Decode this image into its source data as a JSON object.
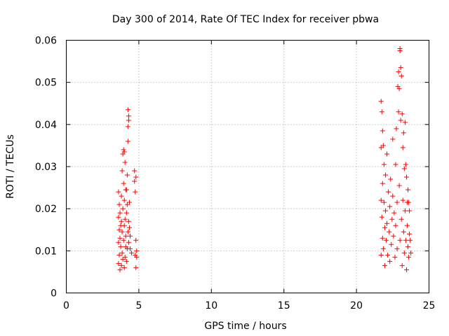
{
  "chart_data": {
    "type": "scatter",
    "title": "Day 300 of 2014, Rate Of TEC Index for receiver pbwa",
    "xlabel": "GPS time / hours",
    "ylabel": "ROTI / TECUs",
    "xlim": [
      0,
      25
    ],
    "ylim": [
      0,
      0.06
    ],
    "xticks": [
      0,
      5,
      10,
      15,
      20,
      25
    ],
    "yticks": [
      0,
      0.01,
      0.02,
      0.03,
      0.04,
      0.05,
      0.06
    ],
    "xtick_labels": [
      "0",
      "5",
      "10",
      "15",
      "20",
      "25"
    ],
    "ytick_labels": [
      "0",
      "0.01",
      "0.02",
      "0.03",
      "0.04",
      "0.05",
      "0.06"
    ],
    "grid": true,
    "marker": "+",
    "color": "#ff0000",
    "series": [
      {
        "name": "ROTI",
        "points": [
          [
            3.6,
            0.024
          ],
          [
            3.6,
            0.018
          ],
          [
            3.6,
            0.012
          ],
          [
            3.6,
            0.007
          ],
          [
            3.65,
            0.021
          ],
          [
            3.65,
            0.009
          ],
          [
            3.65,
            0.015
          ],
          [
            3.7,
            0.019
          ],
          [
            3.7,
            0.0055
          ],
          [
            3.7,
            0.013
          ],
          [
            3.75,
            0.016
          ],
          [
            3.75,
            0.011
          ],
          [
            3.8,
            0.023
          ],
          [
            3.8,
            0.0065
          ],
          [
            3.8,
            0.017
          ],
          [
            3.85,
            0.029
          ],
          [
            3.85,
            0.0145
          ],
          [
            3.85,
            0.0095
          ],
          [
            3.9,
            0.033
          ],
          [
            3.9,
            0.02
          ],
          [
            3.9,
            0.008
          ],
          [
            3.95,
            0.034
          ],
          [
            3.95,
            0.026
          ],
          [
            3.95,
            0.0125
          ],
          [
            4.0,
            0.0335
          ],
          [
            4.0,
            0.022
          ],
          [
            4.0,
            0.006
          ],
          [
            4.0,
            0.016
          ],
          [
            4.05,
            0.031
          ],
          [
            4.05,
            0.0175
          ],
          [
            4.05,
            0.0085
          ],
          [
            4.1,
            0.0245
          ],
          [
            4.1,
            0.0135
          ],
          [
            4.1,
            0.011
          ],
          [
            4.15,
            0.0245
          ],
          [
            4.15,
            0.019
          ],
          [
            4.15,
            0.0075
          ],
          [
            4.2,
            0.028
          ],
          [
            4.2,
            0.021
          ],
          [
            4.2,
            0.0105
          ],
          [
            4.25,
            0.0435
          ],
          [
            4.25,
            0.0395
          ],
          [
            4.25,
            0.036
          ],
          [
            4.25,
            0.0145
          ],
          [
            4.3,
            0.042
          ],
          [
            4.3,
            0.041
          ],
          [
            4.3,
            0.012
          ],
          [
            4.3,
            0.017
          ],
          [
            4.35,
            0.0155
          ],
          [
            4.35,
            0.0215
          ],
          [
            4.4,
            0.0135
          ],
          [
            4.4,
            0.0105
          ],
          [
            4.5,
            0.0095
          ],
          [
            4.7,
            0.029
          ],
          [
            4.7,
            0.0265
          ],
          [
            4.75,
            0.024
          ],
          [
            4.75,
            0.009
          ],
          [
            4.8,
            0.0275
          ],
          [
            4.8,
            0.0125
          ],
          [
            4.8,
            0.006
          ],
          [
            4.85,
            0.0085
          ],
          [
            4.85,
            0.01
          ],
          [
            21.7,
            0.0455
          ],
          [
            21.7,
            0.0345
          ],
          [
            21.7,
            0.022
          ],
          [
            21.7,
            0.009
          ],
          [
            21.75,
            0.043
          ],
          [
            21.75,
            0.018
          ],
          [
            21.8,
            0.0385
          ],
          [
            21.8,
            0.026
          ],
          [
            21.8,
            0.013
          ],
          [
            21.85,
            0.035
          ],
          [
            21.85,
            0.0105
          ],
          [
            21.9,
            0.0305
          ],
          [
            21.9,
            0.0215
          ],
          [
            21.95,
            0.0155
          ],
          [
            21.95,
            0.0065
          ],
          [
            22.0,
            0.028
          ],
          [
            22.0,
            0.0195
          ],
          [
            22.05,
            0.0125
          ],
          [
            22.1,
            0.033
          ],
          [
            22.1,
            0.0165
          ],
          [
            22.15,
            0.009
          ],
          [
            22.2,
            0.024
          ],
          [
            22.25,
            0.0145
          ],
          [
            22.3,
            0.0205
          ],
          [
            22.3,
            0.0075
          ],
          [
            22.35,
            0.027
          ],
          [
            22.4,
            0.0115
          ],
          [
            22.45,
            0.0175
          ],
          [
            22.5,
            0.0365
          ],
          [
            22.5,
            0.023
          ],
          [
            22.55,
            0.0135
          ],
          [
            22.6,
            0.019
          ],
          [
            22.65,
            0.0085
          ],
          [
            22.7,
            0.0305
          ],
          [
            22.7,
            0.016
          ],
          [
            22.75,
            0.039
          ],
          [
            22.8,
            0.0215
          ],
          [
            22.8,
            0.0105
          ],
          [
            22.85,
            0.049
          ],
          [
            22.9,
            0.0525
          ],
          [
            22.9,
            0.043
          ],
          [
            22.95,
            0.0485
          ],
          [
            22.95,
            0.0255
          ],
          [
            23.0,
            0.058
          ],
          [
            23.0,
            0.0575
          ],
          [
            23.0,
            0.0125
          ],
          [
            23.05,
            0.0535
          ],
          [
            23.05,
            0.041
          ],
          [
            23.1,
            0.0515
          ],
          [
            23.1,
            0.0175
          ],
          [
            23.15,
            0.0425
          ],
          [
            23.15,
            0.0065
          ],
          [
            23.2,
            0.0345
          ],
          [
            23.2,
            0.022
          ],
          [
            23.25,
            0.038
          ],
          [
            23.25,
            0.0145
          ],
          [
            23.3,
            0.0295
          ],
          [
            23.3,
            0.0095
          ],
          [
            23.35,
            0.0405
          ],
          [
            23.35,
            0.0195
          ],
          [
            23.4,
            0.0305
          ],
          [
            23.4,
            0.0125
          ],
          [
            23.45,
            0.0275
          ],
          [
            23.45,
            0.0055
          ],
          [
            23.5,
            0.0215
          ],
          [
            23.5,
            0.016
          ],
          [
            23.55,
            0.0245
          ],
          [
            23.55,
            0.011
          ],
          [
            23.6,
            0.0215
          ],
          [
            23.6,
            0.0085
          ],
          [
            23.65,
            0.0195
          ],
          [
            23.65,
            0.014
          ],
          [
            23.7,
            0.0125
          ],
          [
            23.75,
            0.0095
          ]
        ]
      }
    ]
  }
}
